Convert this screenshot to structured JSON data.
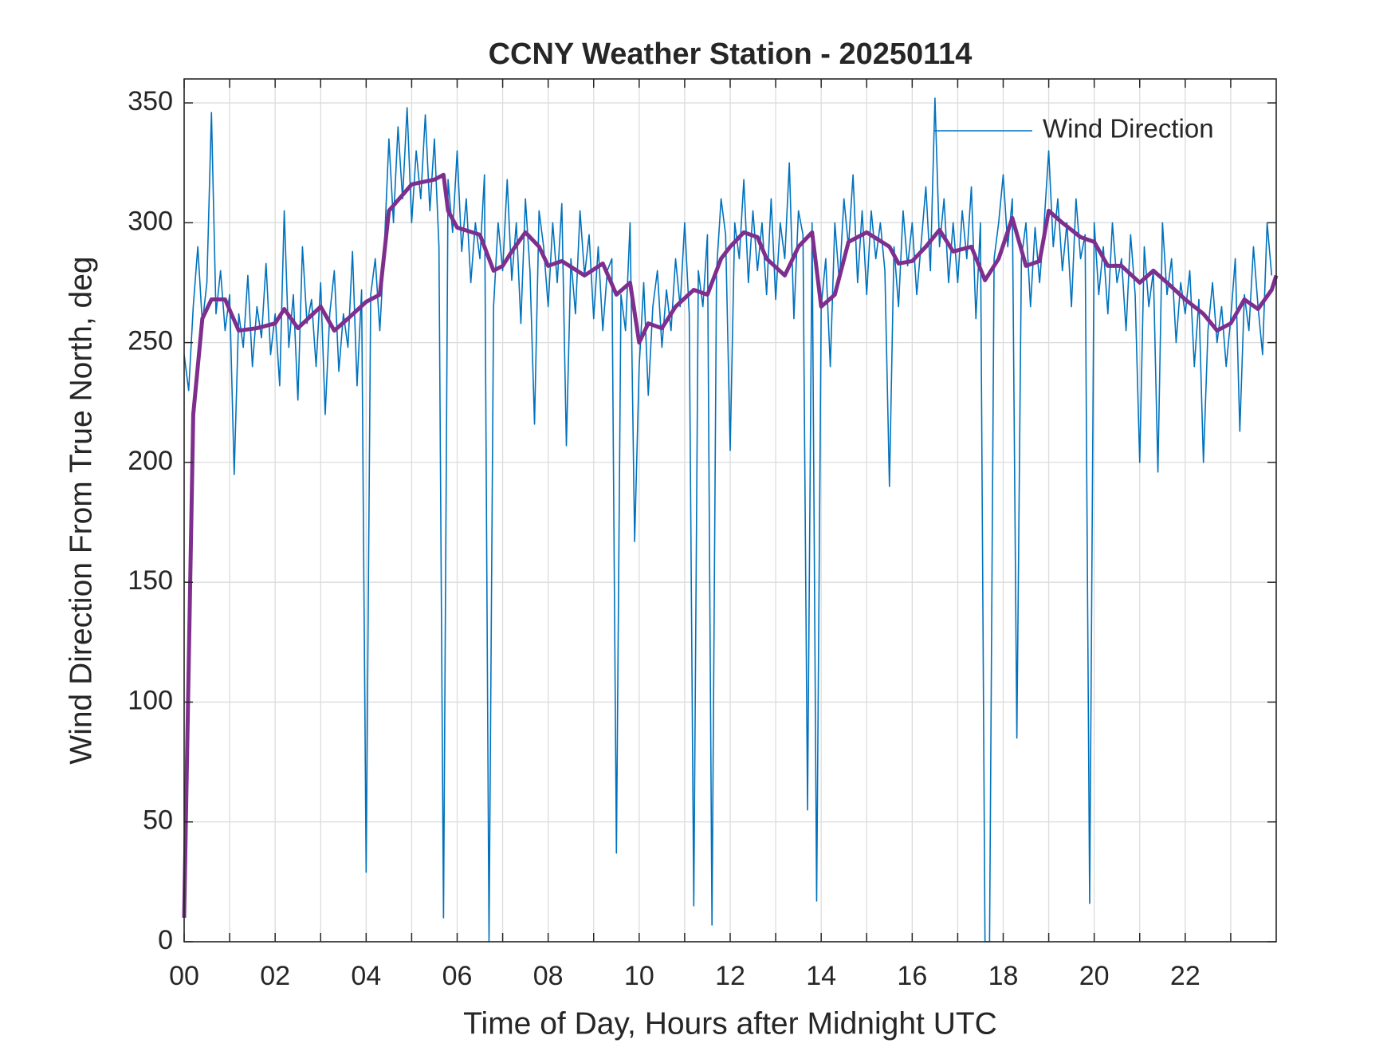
{
  "chart_data": {
    "type": "line",
    "title": "CCNY Weather Station - 20250114",
    "x_label": "Time of Day, Hours after Midnight UTC",
    "y_label": "Wind Direction From True North, deg",
    "xlim": [
      0,
      24
    ],
    "ylim": [
      0,
      360
    ],
    "xticks": [
      {
        "value": 0,
        "label": "00"
      },
      {
        "value": 2,
        "label": "02"
      },
      {
        "value": 4,
        "label": "04"
      },
      {
        "value": 6,
        "label": "06"
      },
      {
        "value": 8,
        "label": "08"
      },
      10,
      12,
      14,
      16,
      18,
      20,
      22
    ],
    "xminorticks": [
      1,
      3,
      5,
      7,
      9,
      11,
      13,
      15,
      17,
      19,
      21,
      23
    ],
    "yticks": [
      0,
      50,
      100,
      150,
      200,
      250,
      300,
      350
    ],
    "grid": true,
    "legend": "northeast",
    "series": [
      {
        "name": "Wind Direction",
        "color": "#0072bd",
        "width": 1.6,
        "x": [
          0,
          0.1,
          0.2,
          0.3,
          0.4,
          0.5,
          0.6,
          0.7,
          0.8,
          0.9,
          1,
          1.1,
          1.2,
          1.3,
          1.4,
          1.5,
          1.6,
          1.7,
          1.8,
          1.9,
          2,
          2.1,
          2.2,
          2.3,
          2.4,
          2.5,
          2.6,
          2.7,
          2.8,
          2.9,
          3,
          3.1,
          3.2,
          3.3,
          3.4,
          3.5,
          3.6,
          3.7,
          3.8,
          3.9,
          4,
          4.1,
          4.2,
          4.3,
          4.4,
          4.5,
          4.6,
          4.7,
          4.8,
          4.9,
          5,
          5.1,
          5.2,
          5.3,
          5.4,
          5.5,
          5.6,
          5.7,
          5.8,
          5.9,
          6,
          6.1,
          6.2,
          6.3,
          6.4,
          6.5,
          6.6,
          6.7,
          6.8,
          6.9,
          7,
          7.1,
          7.2,
          7.3,
          7.4,
          7.5,
          7.6,
          7.7,
          7.8,
          7.9,
          8,
          8.1,
          8.2,
          8.3,
          8.4,
          8.5,
          8.6,
          8.7,
          8.8,
          8.9,
          9,
          9.1,
          9.2,
          9.3,
          9.4,
          9.5,
          9.6,
          9.7,
          9.8,
          9.9,
          10,
          10.1,
          10.2,
          10.3,
          10.4,
          10.5,
          10.6,
          10.7,
          10.8,
          10.9,
          11,
          11.1,
          11.2,
          11.3,
          11.4,
          11.5,
          11.6,
          11.7,
          11.8,
          11.9,
          12,
          12.1,
          12.2,
          12.3,
          12.4,
          12.5,
          12.6,
          12.7,
          12.8,
          12.9,
          13,
          13.1,
          13.2,
          13.3,
          13.4,
          13.5,
          13.6,
          13.7,
          13.8,
          13.9,
          14,
          14.1,
          14.2,
          14.3,
          14.4,
          14.5,
          14.6,
          14.7,
          14.8,
          14.9,
          15,
          15.1,
          15.2,
          15.3,
          15.4,
          15.5,
          15.6,
          15.7,
          15.8,
          15.9,
          16,
          16.1,
          16.2,
          16.3,
          16.4,
          16.5,
          16.6,
          16.7,
          16.8,
          16.9,
          17,
          17.1,
          17.2,
          17.3,
          17.4,
          17.5,
          17.6,
          17.7,
          17.8,
          17.9,
          18,
          18.1,
          18.2,
          18.3,
          18.4,
          18.5,
          18.6,
          18.7,
          18.8,
          18.9,
          19,
          19.1,
          19.2,
          19.3,
          19.4,
          19.5,
          19.6,
          19.7,
          19.8,
          19.9,
          20,
          20.1,
          20.2,
          20.3,
          20.4,
          20.5,
          20.6,
          20.7,
          20.8,
          20.9,
          21,
          21.1,
          21.2,
          21.3,
          21.4,
          21.5,
          21.6,
          21.7,
          21.8,
          21.9,
          22,
          22.1,
          22.2,
          22.3,
          22.4,
          22.5,
          22.6,
          22.7,
          22.8,
          22.9,
          23,
          23.1,
          23.2,
          23.3,
          23.4,
          23.5,
          23.6,
          23.7,
          23.8,
          23.9
        ],
        "values": [
          245,
          230,
          265,
          290,
          258,
          275,
          346,
          262,
          280,
          255,
          270,
          195,
          262,
          248,
          278,
          240,
          265,
          252,
          283,
          245,
          262,
          232,
          305,
          248,
          270,
          226,
          290,
          258,
          268,
          240,
          275,
          220,
          262,
          280,
          238,
          262,
          248,
          288,
          232,
          272,
          29,
          270,
          285,
          255,
          290,
          335,
          300,
          340,
          310,
          348,
          300,
          330,
          310,
          345,
          305,
          335,
          290,
          10,
          318,
          296,
          330,
          288,
          310,
          275,
          300,
          285,
          320,
          0,
          265,
          300,
          280,
          318,
          276,
          300,
          258,
          310,
          280,
          216,
          305,
          290,
          265,
          300,
          275,
          308,
          207,
          285,
          262,
          305,
          278,
          295,
          260,
          290,
          255,
          280,
          285,
          37,
          270,
          255,
          300,
          167,
          240,
          275,
          228,
          265,
          280,
          248,
          272,
          255,
          285,
          265,
          300,
          262,
          15,
          280,
          265,
          295,
          7,
          280,
          310,
          295,
          205,
          300,
          285,
          318,
          275,
          305,
          280,
          300,
          270,
          310,
          268,
          300,
          285,
          325,
          260,
          305,
          295,
          55,
          300,
          17,
          265,
          285,
          240,
          300,
          275,
          310,
          290,
          320,
          275,
          305,
          270,
          305,
          285,
          300,
          280,
          190,
          290,
          265,
          305,
          282,
          300,
          270,
          292,
          315,
          280,
          352,
          290,
          310,
          275,
          300,
          275,
          305,
          285,
          315,
          260,
          300,
          0,
          0,
          285,
          300,
          320,
          290,
          310,
          85,
          285,
          300,
          265,
          298,
          275,
          300,
          330,
          290,
          310,
          280,
          300,
          265,
          310,
          285,
          295,
          16,
          300,
          270,
          290,
          262,
          300,
          275,
          285,
          255,
          295,
          270,
          200,
          290,
          265,
          280,
          196,
          300,
          270,
          285,
          250,
          275,
          262,
          280,
          240,
          268,
          200,
          255,
          275,
          250,
          265,
          240,
          260,
          285,
          213,
          270,
          255,
          290,
          265,
          245,
          300,
          278
        ]
      },
      {
        "color": "#7e2f8e",
        "width": 5,
        "x": [
          0,
          0.2,
          0.4,
          0.6,
          0.9,
          1.2,
          1.6,
          2,
          2.2,
          2.5,
          3,
          3.3,
          3.6,
          4,
          4.3,
          4.5,
          5,
          5.5,
          5.7,
          5.8,
          6,
          6.5,
          6.8,
          7,
          7.2,
          7.5,
          7.8,
          8,
          8.3,
          8.8,
          9.2,
          9.5,
          9.8,
          10,
          10.2,
          10.5,
          10.8,
          11.2,
          11.5,
          11.8,
          12,
          12.3,
          12.6,
          12.8,
          13.2,
          13.5,
          13.8,
          14,
          14.3,
          14.6,
          15,
          15.5,
          15.7,
          16,
          16.3,
          16.6,
          16.9,
          17.3,
          17.6,
          17.9,
          18.2,
          18.5,
          18.8,
          19,
          19.3,
          19.7,
          20,
          20.3,
          20.6,
          21,
          21.3,
          21.6,
          22,
          22.4,
          22.7,
          23,
          23.3,
          23.6,
          23.9,
          24
        ],
        "values": [
          10,
          220,
          260,
          268,
          268,
          255,
          256,
          258,
          264,
          256,
          265,
          255,
          260,
          267,
          270,
          305,
          316,
          318,
          320,
          305,
          298,
          295,
          280,
          282,
          288,
          296,
          290,
          282,
          284,
          278,
          283,
          270,
          275,
          250,
          258,
          256,
          265,
          272,
          270,
          285,
          290,
          296,
          294,
          285,
          278,
          290,
          296,
          265,
          270,
          292,
          296,
          290,
          283,
          284,
          290,
          297,
          288,
          290,
          276,
          285,
          302,
          282,
          284,
          305,
          300,
          294,
          292,
          282,
          282,
          275,
          280,
          275,
          268,
          262,
          255,
          258,
          268,
          264,
          272,
          278
        ]
      }
    ]
  }
}
